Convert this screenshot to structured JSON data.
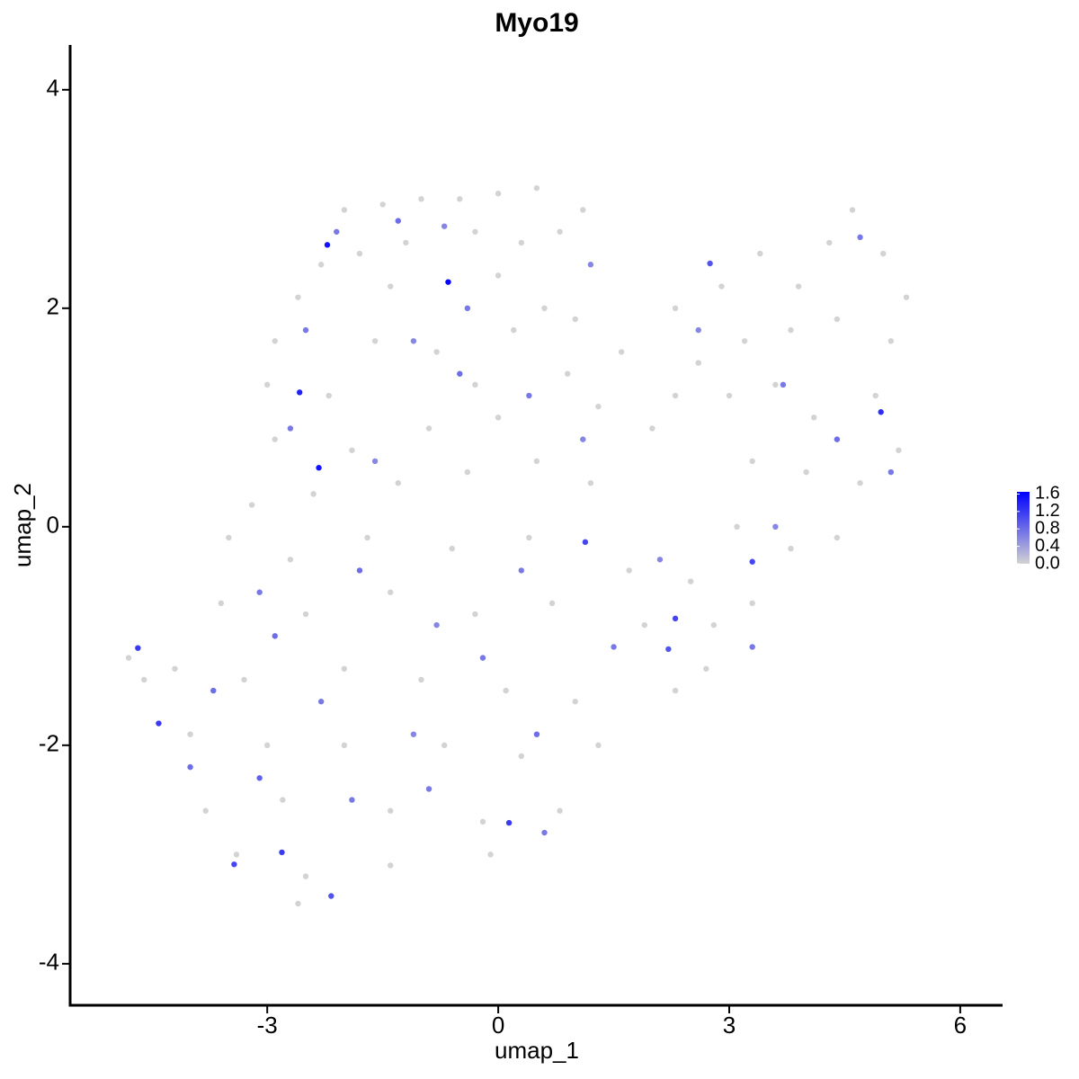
{
  "chart_data": {
    "type": "scatter",
    "title": "Myo19",
    "x_label": "umap_1",
    "y_label": "umap_2",
    "xlim": [
      -5.56,
      6.55
    ],
    "ylim": [
      -4.38,
      4.41
    ],
    "xticks": [
      -3,
      0,
      3,
      6
    ],
    "yticks": [
      -4,
      -2,
      0,
      2,
      4
    ],
    "color_low": "#d3d3d3",
    "color_high": "#0000ff",
    "clim": [
      0,
      1.65
    ],
    "cticks": [
      {
        "value": 0,
        "label": "0.0"
      },
      0.4,
      0.8,
      1.2,
      1.6
    ],
    "x": [
      -2.0,
      -1.5,
      -1.0,
      -0.5,
      0,
      0.5,
      1.1,
      -2.3,
      -1.8,
      -1.2,
      -0.3,
      0.3,
      0.8,
      -2.6,
      -1.4,
      0.0,
      0.6,
      -2.9,
      -1.6,
      -0.8,
      0.2,
      1.0,
      -3.0,
      -2.2,
      -0.3,
      0.9,
      1.6,
      -2.9,
      -1.9,
      -0.9,
      0.0,
      1.3,
      2.0,
      -3.2,
      -2.4,
      -1.3,
      -0.4,
      0.5,
      1.2,
      -3.5,
      -2.7,
      -1.7,
      -0.6,
      0.4,
      1.7,
      -3.6,
      -2.5,
      -1.4,
      -0.3,
      0.7,
      1.9,
      2.8,
      -4.2,
      -3.3,
      -2.0,
      -1.0,
      0.1,
      1.0,
      2.3,
      -4.0,
      -3.0,
      -2.0,
      -0.7,
      0.3,
      1.3,
      -3.8,
      -2.8,
      -1.4,
      -0.2,
      0.8,
      -3.4,
      -2.5,
      -1.4,
      -0.1,
      -2.6,
      -4.8,
      -4.6,
      2.3,
      2.9,
      3.4,
      3.9,
      4.3,
      4.6,
      5.0,
      5.3,
      2.6,
      3.2,
      3.8,
      4.4,
      5.1,
      2.3,
      3.0,
      3.6,
      4.1,
      4.9,
      3.3,
      4.0,
      4.7,
      5.2,
      3.1,
      3.8,
      4.4,
      2.5,
      3.3,
      2.7,
      -2.1,
      -1.3,
      -0.7,
      -2.5,
      -1.1,
      -0.5,
      -2.7,
      -1.6,
      0.4,
      1.1,
      -3.1,
      -1.8,
      -0.8,
      0.3,
      1.5,
      -3.7,
      -2.3,
      -1.1,
      0.5,
      -3.1,
      -1.9,
      0.6,
      2.6,
      3.7,
      4.4,
      5.1,
      3.6,
      4.7,
      -0.4,
      1.2,
      -2.9,
      -0.2,
      2.1,
      3.3,
      -4.0,
      -0.9,
      -2.22,
      -0.65,
      -2.58,
      -2.33,
      -4.68,
      -4.41,
      4.97,
      2.75,
      1.13,
      3.3,
      2.3,
      2.21,
      0.14,
      -2.81,
      -3.43,
      -2.17
    ],
    "y": [
      2.9,
      2.95,
      3.0,
      3.0,
      3.05,
      3.1,
      2.9,
      2.4,
      2.5,
      2.6,
      2.7,
      2.6,
      2.7,
      2.1,
      2.2,
      2.3,
      2.0,
      1.7,
      1.7,
      1.6,
      1.8,
      1.9,
      1.3,
      1.2,
      1.3,
      1.4,
      1.6,
      0.8,
      0.7,
      0.9,
      1.0,
      1.1,
      0.9,
      0.2,
      0.3,
      0.4,
      0.5,
      0.6,
      0.4,
      -0.1,
      -0.3,
      -0.1,
      -0.2,
      -0.1,
      -0.4,
      -0.7,
      -0.8,
      -0.6,
      -0.8,
      -0.7,
      -0.9,
      -0.9,
      -1.3,
      -1.4,
      -1.3,
      -1.4,
      -1.5,
      -1.6,
      -1.5,
      -1.9,
      -2.0,
      -2.0,
      -2.0,
      -2.1,
      -2.0,
      -2.6,
      -2.5,
      -2.6,
      -2.7,
      -2.6,
      -3.0,
      -3.2,
      -3.1,
      -3.0,
      -3.45,
      -1.2,
      -1.4,
      2.0,
      2.2,
      2.5,
      2.2,
      2.6,
      2.9,
      2.5,
      2.1,
      1.5,
      1.7,
      1.8,
      1.9,
      1.7,
      1.2,
      1.2,
      1.3,
      1.0,
      1.2,
      0.6,
      0.5,
      0.4,
      0.7,
      0.0,
      -0.2,
      -0.1,
      -0.5,
      -0.7,
      -1.3,
      2.7,
      2.8,
      2.75,
      1.8,
      1.7,
      1.4,
      0.9,
      0.6,
      1.2,
      0.8,
      -0.6,
      -0.4,
      -0.9,
      -0.4,
      -1.1,
      -1.5,
      -1.6,
      -1.9,
      -1.9,
      -2.3,
      -2.5,
      -2.8,
      1.8,
      1.3,
      0.8,
      0.5,
      0.0,
      2.65,
      2.0,
      2.4,
      -1.0,
      -1.2,
      -0.3,
      -1.1,
      -2.2,
      -2.4,
      2.58,
      2.24,
      1.23,
      0.54,
      -1.11,
      -1.8,
      1.05,
      2.41,
      -0.14,
      -0.32,
      -0.84,
      -1.12,
      -2.71,
      -2.98,
      -3.09,
      -3.38
    ],
    "values": [
      0,
      0,
      0,
      0,
      0,
      0,
      0,
      0,
      0,
      0,
      0,
      0,
      0,
      0,
      0,
      0,
      0,
      0,
      0,
      0,
      0,
      0,
      0,
      0,
      0,
      0,
      0,
      0,
      0,
      0,
      0,
      0,
      0,
      0,
      0,
      0,
      0,
      0,
      0,
      0,
      0,
      0,
      0,
      0,
      0,
      0,
      0,
      0,
      0,
      0,
      0,
      0,
      0,
      0,
      0,
      0,
      0,
      0,
      0,
      0,
      0,
      0,
      0,
      0,
      0,
      0,
      0,
      0,
      0,
      0,
      0,
      0,
      0,
      0,
      0,
      0,
      0,
      0,
      0,
      0,
      0,
      0,
      0,
      0,
      0,
      0,
      0,
      0,
      0,
      0,
      0,
      0,
      0,
      0,
      0,
      0,
      0,
      0,
      0,
      0,
      0,
      0,
      0,
      0,
      0,
      0.7,
      0.8,
      0.6,
      0.7,
      0.6,
      0.8,
      0.7,
      0.6,
      0.7,
      0.6,
      0.7,
      0.8,
      0.6,
      0.7,
      0.7,
      0.8,
      0.7,
      0.6,
      0.8,
      0.9,
      0.7,
      0.7,
      0.6,
      0.7,
      0.8,
      0.7,
      0.6,
      0.7,
      0.7,
      0.6,
      0.8,
      0.7,
      0.6,
      0.7,
      0.8,
      0.7,
      1.5,
      1.6,
      1.4,
      1.5,
      1.2,
      1.2,
      1.3,
      1.0,
      1.1,
      1.1,
      1.1,
      1.0,
      1.2,
      1.2,
      1.1,
      1.0
    ]
  }
}
